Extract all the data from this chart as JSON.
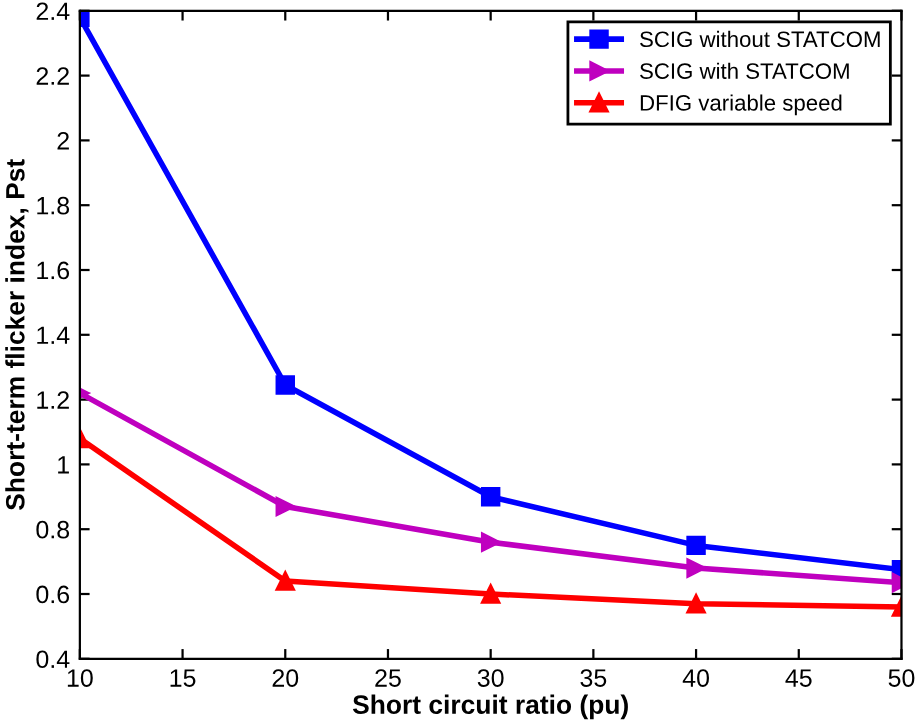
{
  "chart_data": {
    "type": "line",
    "xlabel": "Short circuit ratio (pu)",
    "ylabel": "Short-term flicker index, Pst",
    "x": [
      10,
      20,
      30,
      40,
      50
    ],
    "series": [
      {
        "name": "SCIG without STATCOM",
        "color": "#0000ff",
        "marker": "square",
        "values": [
          2.38,
          1.245,
          0.9,
          0.75,
          0.675
        ]
      },
      {
        "name": "SCIG with STATCOM",
        "color": "#bf00bf",
        "marker": "triangle right",
        "values": [
          1.22,
          0.87,
          0.76,
          0.68,
          0.635
        ]
      },
      {
        "name": "DFIG variable speed",
        "color": "#ff0000",
        "marker": "triangle",
        "values": [
          1.08,
          0.64,
          0.6,
          0.57,
          0.56
        ]
      }
    ],
    "xlim": [
      10,
      50
    ],
    "ylim": [
      0.4,
      2.4
    ],
    "xticks": [
      10,
      15,
      20,
      25,
      30,
      35,
      40,
      45,
      50
    ],
    "yticks": [
      0.4,
      0.6,
      0.8,
      1,
      1.2,
      1.4,
      1.6,
      1.8,
      2,
      2.2,
      2.4
    ],
    "grid": false,
    "legend": "top right",
    "line_style": "solid"
  }
}
